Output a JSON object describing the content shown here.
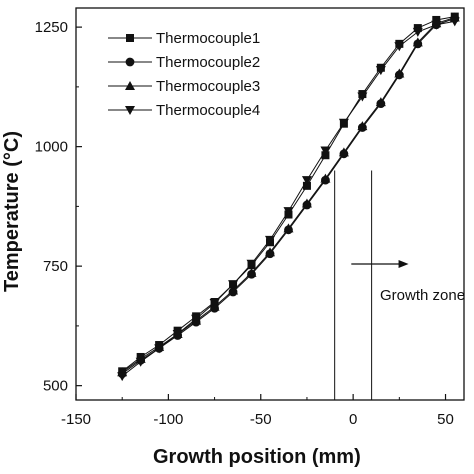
{
  "chart_data": {
    "type": "line",
    "xlabel": "Growth position (mm)",
    "ylabel": "Temperature (°C)",
    "xlim": [
      -150,
      60
    ],
    "ylim": [
      470,
      1290
    ],
    "x_ticks": [
      "-150",
      "-100",
      "-50",
      "0",
      "50"
    ],
    "y_ticks": [
      "500",
      "750",
      "1000",
      "1250"
    ],
    "legend_position": "top-left",
    "series": [
      {
        "name": "Thermocouple1",
        "marker": "square",
        "x": [
          -125,
          -115,
          -105,
          -95,
          -85,
          -75,
          -65,
          -55,
          -45,
          -35,
          -25,
          -15,
          -5,
          5,
          15,
          25,
          35,
          45,
          55
        ],
        "y": [
          530,
          560,
          585,
          615,
          645,
          675,
          712,
          752,
          800,
          858,
          918,
          982,
          1048,
          1110,
          1165,
          1215,
          1248,
          1265,
          1272
        ]
      },
      {
        "name": "Thermocouple2",
        "marker": "circle",
        "x": [
          -125,
          -115,
          -105,
          -95,
          -85,
          -75,
          -65,
          -55,
          -45,
          -35,
          -25,
          -15,
          -5,
          5,
          15,
          25,
          35,
          45,
          55
        ],
        "y": [
          525,
          553,
          578,
          605,
          633,
          662,
          696,
          733,
          776,
          826,
          878,
          930,
          985,
          1040,
          1090,
          1150,
          1215,
          1255,
          1268
        ]
      },
      {
        "name": "Thermocouple3",
        "marker": "triangle-up",
        "x": [
          -125,
          -115,
          -105,
          -95,
          -85,
          -75,
          -65,
          -55,
          -45,
          -35,
          -25,
          -15,
          -5,
          5,
          15,
          25,
          35,
          45,
          55
        ],
        "y": [
          528,
          556,
          581,
          608,
          636,
          665,
          699,
          736,
          779,
          829,
          881,
          933,
          988,
          1043,
          1093,
          1153,
          1218,
          1258,
          1270
        ]
      },
      {
        "name": "Thermocouple4",
        "marker": "triangle-down",
        "x": [
          -125,
          -115,
          -105,
          -95,
          -85,
          -75,
          -65,
          -55,
          -45,
          -35,
          -25,
          -15,
          -5,
          5,
          15,
          25,
          35,
          45,
          55
        ],
        "y": [
          520,
          550,
          578,
          608,
          640,
          673,
          712,
          755,
          805,
          865,
          930,
          992,
          1050,
          1105,
          1160,
          1210,
          1240,
          1255,
          1262
        ]
      }
    ],
    "vertical_lines": [
      -10,
      10
    ],
    "annotation": {
      "text": "Growth zone",
      "arrow_from": -1,
      "arrow_to": 30
    }
  }
}
